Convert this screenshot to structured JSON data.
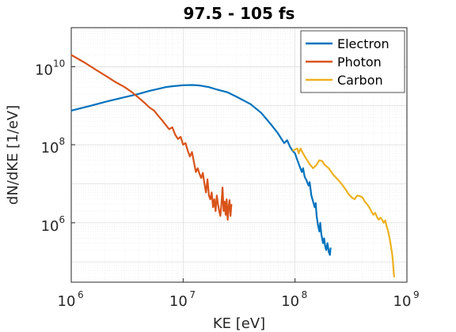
{
  "chart_data": {
    "type": "line",
    "title": "97.5 - 105 fs",
    "xlabel": "KE [eV]",
    "ylabel": "dN/dKE [1/eV]",
    "xscale": "log",
    "yscale": "log",
    "xlim": [
      1000000,
      1000000000
    ],
    "ylim": [
      30000,
      100000000000
    ],
    "xticks": [
      {
        "value": 1000000,
        "base": "10",
        "exp": "6"
      },
      {
        "value": 10000000,
        "base": "10",
        "exp": "7"
      },
      {
        "value": 100000000,
        "base": "10",
        "exp": "8"
      },
      {
        "value": 1000000000,
        "base": "10",
        "exp": "9"
      }
    ],
    "yticks": [
      {
        "value": 1000000,
        "base": "10",
        "exp": "6"
      },
      {
        "value": 100000000,
        "base": "10",
        "exp": "8"
      },
      {
        "value": 10000000000,
        "base": "10",
        "exp": "10"
      }
    ],
    "grid": true,
    "minor_grid": true,
    "legend_position": "top-right",
    "series": [
      {
        "name": "Electron",
        "color": "#0072BD",
        "points": [
          [
            1000000,
            750000000
          ],
          [
            1500000,
            1000000000
          ],
          [
            2000000,
            1250000000
          ],
          [
            3000000,
            1650000000
          ],
          [
            4000000,
            2000000000
          ],
          [
            5000000,
            2400000000
          ],
          [
            6000000,
            2700000000
          ],
          [
            7000000,
            3000000000
          ],
          [
            8000000,
            3150000000
          ],
          [
            10000000,
            3350000000
          ],
          [
            12000000,
            3400000000
          ],
          [
            14000000,
            3300000000
          ],
          [
            17000000,
            3000000000
          ],
          [
            20000000,
            2600000000
          ],
          [
            25000000,
            2200000000
          ],
          [
            30000000,
            1700000000
          ],
          [
            40000000,
            1100000000
          ],
          [
            50000000,
            650000000
          ],
          [
            60000000,
            350000000
          ],
          [
            70000000,
            200000000
          ],
          [
            80000000,
            110000000
          ],
          [
            85000000,
            130000000
          ],
          [
            90000000,
            90000000
          ],
          [
            95000000,
            70000000
          ],
          [
            100000000,
            60000000
          ],
          [
            105000000,
            40000000
          ],
          [
            110000000,
            28000000
          ],
          [
            115000000,
            20000000
          ],
          [
            118000000,
            25000000
          ],
          [
            122000000,
            15000000
          ],
          [
            127000000,
            12000000
          ],
          [
            132000000,
            9000000
          ],
          [
            135000000,
            11000000
          ],
          [
            140000000,
            5000000
          ],
          [
            145000000,
            3500000
          ],
          [
            150000000,
            2500000
          ],
          [
            153000000,
            3200000
          ],
          [
            156000000,
            1500000
          ],
          [
            160000000,
            900000
          ],
          [
            165000000,
            600000
          ],
          [
            168000000,
            1000000
          ],
          [
            172000000,
            500000
          ],
          [
            178000000,
            300000
          ],
          [
            182000000,
            400000
          ],
          [
            186000000,
            250000
          ],
          [
            190000000,
            200000
          ],
          [
            195000000,
            300000
          ],
          [
            200000000,
            180000
          ],
          [
            205000000,
            150000
          ],
          [
            208000000,
            230000
          ]
        ]
      },
      {
        "name": "Photon",
        "color": "#D95319",
        "points": [
          [
            1000000,
            20000000000
          ],
          [
            1300000,
            13000000000
          ],
          [
            1700000,
            8000000000
          ],
          [
            2000000,
            6000000000
          ],
          [
            2500000,
            4000000000
          ],
          [
            3000000,
            3000000000
          ],
          [
            3500000,
            2200000000
          ],
          [
            4000000,
            1600000000
          ],
          [
            4500000,
            1200000000
          ],
          [
            5000000,
            900000000
          ],
          [
            5500000,
            750000000
          ],
          [
            6000000,
            550000000
          ],
          [
            6500000,
            420000000
          ],
          [
            7000000,
            320000000
          ],
          [
            7500000,
            250000000
          ],
          [
            8000000,
            280000000
          ],
          [
            8500000,
            180000000
          ],
          [
            9000000,
            140000000
          ],
          [
            9500000,
            160000000
          ],
          [
            10000000,
            100000000
          ],
          [
            10500000,
            110000000
          ],
          [
            11000000,
            70000000
          ],
          [
            11500000,
            50000000
          ],
          [
            12000000,
            65000000
          ],
          [
            12500000,
            35000000
          ],
          [
            13000000,
            20000000
          ],
          [
            13500000,
            25000000
          ],
          [
            14000000,
            18000000
          ],
          [
            14500000,
            14000000
          ],
          [
            15000000,
            19000000
          ],
          [
            15500000,
            10000000
          ],
          [
            16000000,
            6000000
          ],
          [
            16500000,
            13000000
          ],
          [
            17000000,
            5000000
          ],
          [
            17500000,
            4000000
          ],
          [
            18000000,
            6000000
          ],
          [
            18500000,
            2500000
          ],
          [
            19000000,
            4000000
          ],
          [
            19500000,
            2000000
          ],
          [
            20000000,
            5000000
          ],
          [
            20500000,
            3000000
          ],
          [
            21000000,
            2000000
          ],
          [
            21500000,
            1500000
          ],
          [
            22000000,
            3000000
          ],
          [
            22500000,
            8000000
          ],
          [
            23000000,
            2000000
          ],
          [
            23500000,
            3500000
          ],
          [
            24000000,
            1600000
          ],
          [
            24500000,
            4000000
          ],
          [
            25000000,
            1200000
          ],
          [
            25500000,
            2500000
          ],
          [
            26000000,
            3800000
          ],
          [
            26500000,
            1500000
          ],
          [
            27000000,
            3000000
          ]
        ]
      },
      {
        "name": "Carbon",
        "color": "#EDB120",
        "points": [
          [
            95000000,
            70000000
          ],
          [
            100000000,
            75000000
          ],
          [
            105000000,
            80000000
          ],
          [
            108000000,
            60000000
          ],
          [
            112000000,
            80000000
          ],
          [
            118000000,
            60000000
          ],
          [
            125000000,
            45000000
          ],
          [
            135000000,
            32000000
          ],
          [
            145000000,
            25000000
          ],
          [
            155000000,
            30000000
          ],
          [
            165000000,
            40000000
          ],
          [
            175000000,
            38000000
          ],
          [
            185000000,
            30000000
          ],
          [
            200000000,
            25000000
          ],
          [
            220000000,
            17000000
          ],
          [
            240000000,
            13000000
          ],
          [
            260000000,
            10000000
          ],
          [
            280000000,
            7500000
          ],
          [
            300000000,
            5500000
          ],
          [
            320000000,
            4500000
          ],
          [
            340000000,
            4000000
          ],
          [
            360000000,
            5000000
          ],
          [
            380000000,
            4800000
          ],
          [
            400000000,
            4500000
          ],
          [
            420000000,
            3500000
          ],
          [
            440000000,
            3000000
          ],
          [
            460000000,
            2500000
          ],
          [
            480000000,
            2000000
          ],
          [
            500000000,
            1600000
          ],
          [
            520000000,
            1800000
          ],
          [
            540000000,
            1400000
          ],
          [
            560000000,
            1200000
          ],
          [
            580000000,
            1350000
          ],
          [
            600000000,
            1200000
          ],
          [
            620000000,
            1000000
          ],
          [
            640000000,
            1150000
          ],
          [
            660000000,
            800000
          ],
          [
            680000000,
            600000
          ],
          [
            700000000,
            400000
          ],
          [
            720000000,
            250000
          ],
          [
            740000000,
            150000
          ],
          [
            750000000,
            100000
          ],
          [
            760000000,
            60000
          ],
          [
            770000000,
            40000
          ]
        ]
      }
    ]
  }
}
